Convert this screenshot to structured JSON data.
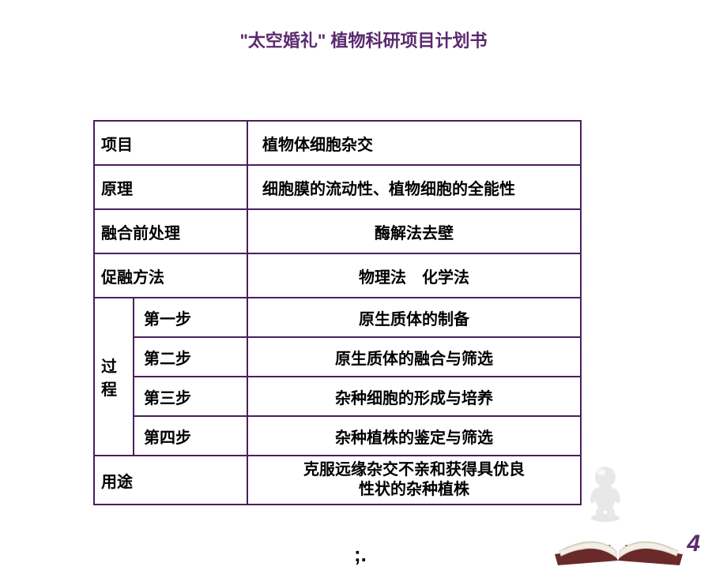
{
  "title_text": "\"太空婚礼\" 植物科研项目计划书",
  "title_color": "#5b2a6e",
  "title_fontsize": 22,
  "table": {
    "border_color": "#4a1f5d",
    "text_color": "#000000",
    "cell_fontsize": 20,
    "rows": {
      "project_label": "项目",
      "project_value": "植物体细胞杂交",
      "principle_label": "原理",
      "principle_value": "细胞膜的流动性、植物细胞的全能性",
      "pretreat_label": "融合前处理",
      "pretreat_value": "酶解法去壁",
      "promote_label": "促融方法",
      "promote_value": "物理法　化学法",
      "process_label": "过程",
      "steps": [
        {
          "label": "第一步",
          "value": "原生质体的制备"
        },
        {
          "label": "第二步",
          "value": "原生质体的融合与筛选"
        },
        {
          "label": "第三步",
          "value": "杂种细胞的形成与培养"
        },
        {
          "label": "第四步",
          "value": "杂种植株的鉴定与筛选"
        }
      ],
      "usage_label": "用途",
      "usage_value_line1": "克服远缘杂交不亲和获得具优良",
      "usage_value_line2": "性状的杂种植株"
    }
  },
  "page_number": "4",
  "page_number_color": "#5b2a6e",
  "page_number_fontsize": 30,
  "decoration": {
    "book_cover_color": "#6a2a2a",
    "book_page_color": "#f3efe6",
    "book_page_edge": "#d4cfc0",
    "figure_color": "#e8e8e8",
    "figure_shadow": "#cfcfcf"
  },
  "semicolon_text": ";."
}
